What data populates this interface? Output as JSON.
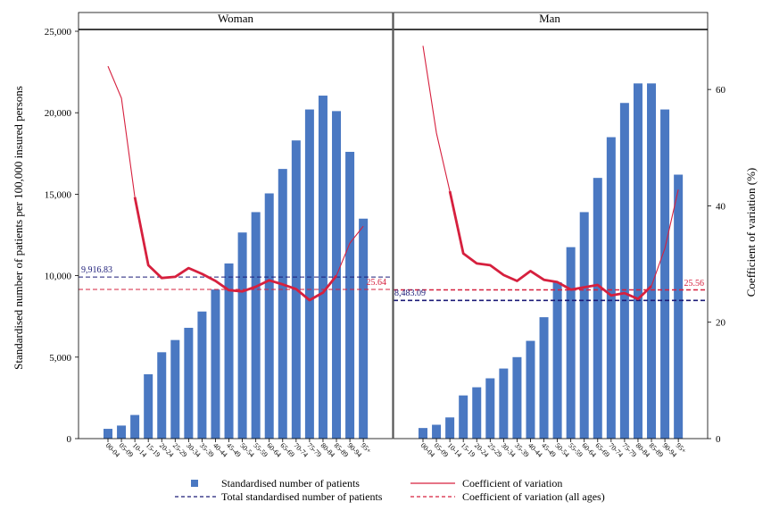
{
  "chart_data": {
    "type": "bar",
    "categories": [
      "00-04",
      "05-09",
      "10-14",
      "15-19",
      "20-24",
      "25-29",
      "30-34",
      "35-39",
      "40-44",
      "45-49",
      "50-54",
      "55-59",
      "60-64",
      "65-69",
      "70-74",
      "75-79",
      "80-84",
      "85-89",
      "90-94",
      "95+"
    ],
    "panels": [
      {
        "title": "Woman",
        "values": [
          600,
          800,
          1450,
          3950,
          5300,
          6050,
          6800,
          7800,
          9150,
          10750,
          12650,
          13900,
          15050,
          16550,
          18300,
          20200,
          21050,
          20100,
          17600,
          13500
        ],
        "cv": [
          64,
          58.5,
          41.5,
          29.8,
          27.6,
          27.8,
          29.3,
          28.3,
          27.1,
          25.5,
          25.3,
          26.1,
          27.2,
          26.5,
          25.7,
          23.8,
          25.1,
          28.0,
          33.6,
          36.5
        ],
        "total_standardised": 9916.83,
        "total_label": "9,916.83",
        "cv_all_ages": 25.64,
        "cv_all_ages_label": "25.64"
      },
      {
        "title": "Man",
        "values": [
          650,
          850,
          1300,
          2650,
          3150,
          3700,
          4300,
          5000,
          6000,
          7450,
          9600,
          11750,
          13900,
          16000,
          18500,
          20600,
          21800,
          21800,
          20200,
          16200
        ],
        "cv": [
          67.5,
          52.5,
          42.5,
          31.8,
          30.1,
          29.8,
          28.1,
          27.1,
          28.8,
          27.3,
          26.9,
          25.6,
          26.0,
          26.4,
          24.6,
          25.0,
          24.0,
          26.2,
          32.7,
          42.8
        ],
        "total_standardised": 8483.09,
        "total_label": "8,483.09",
        "cv_all_ages": 25.56,
        "cv_all_ages_label": "25.56"
      }
    ],
    "bold_cv_range": [
      "10-14",
      "85-89"
    ],
    "ylabel": "Standardised number of patients per 100,000 insured persons",
    "ylabel_right": "Coefficient of variation (%)",
    "ylim": [
      0,
      25000
    ],
    "ylim_right": [
      0,
      70
    ],
    "yticks": [
      "0",
      "5,000",
      "10,000",
      "15,000",
      "20,000",
      "25,000"
    ],
    "yticks_right": [
      "0",
      "20",
      "40",
      "60"
    ],
    "legend": [
      {
        "label": "Standardised number of patients",
        "kind": "bar",
        "color": "#4a78c2"
      },
      {
        "label": "Coefficient of variation",
        "kind": "line",
        "color": "#d6203e"
      },
      {
        "label": "Total standardised number of patients",
        "kind": "dash",
        "color": "#1c1c78"
      },
      {
        "label": "Coefficient of variation (all ages)",
        "kind": "dash",
        "color": "#d6203e"
      }
    ],
    "legend_position": "bottom",
    "grid": false,
    "colors": {
      "bar": "#4a78c2",
      "cv": "#d6203e",
      "total": "#1c1c78",
      "cv_all": "#d6203e"
    }
  }
}
